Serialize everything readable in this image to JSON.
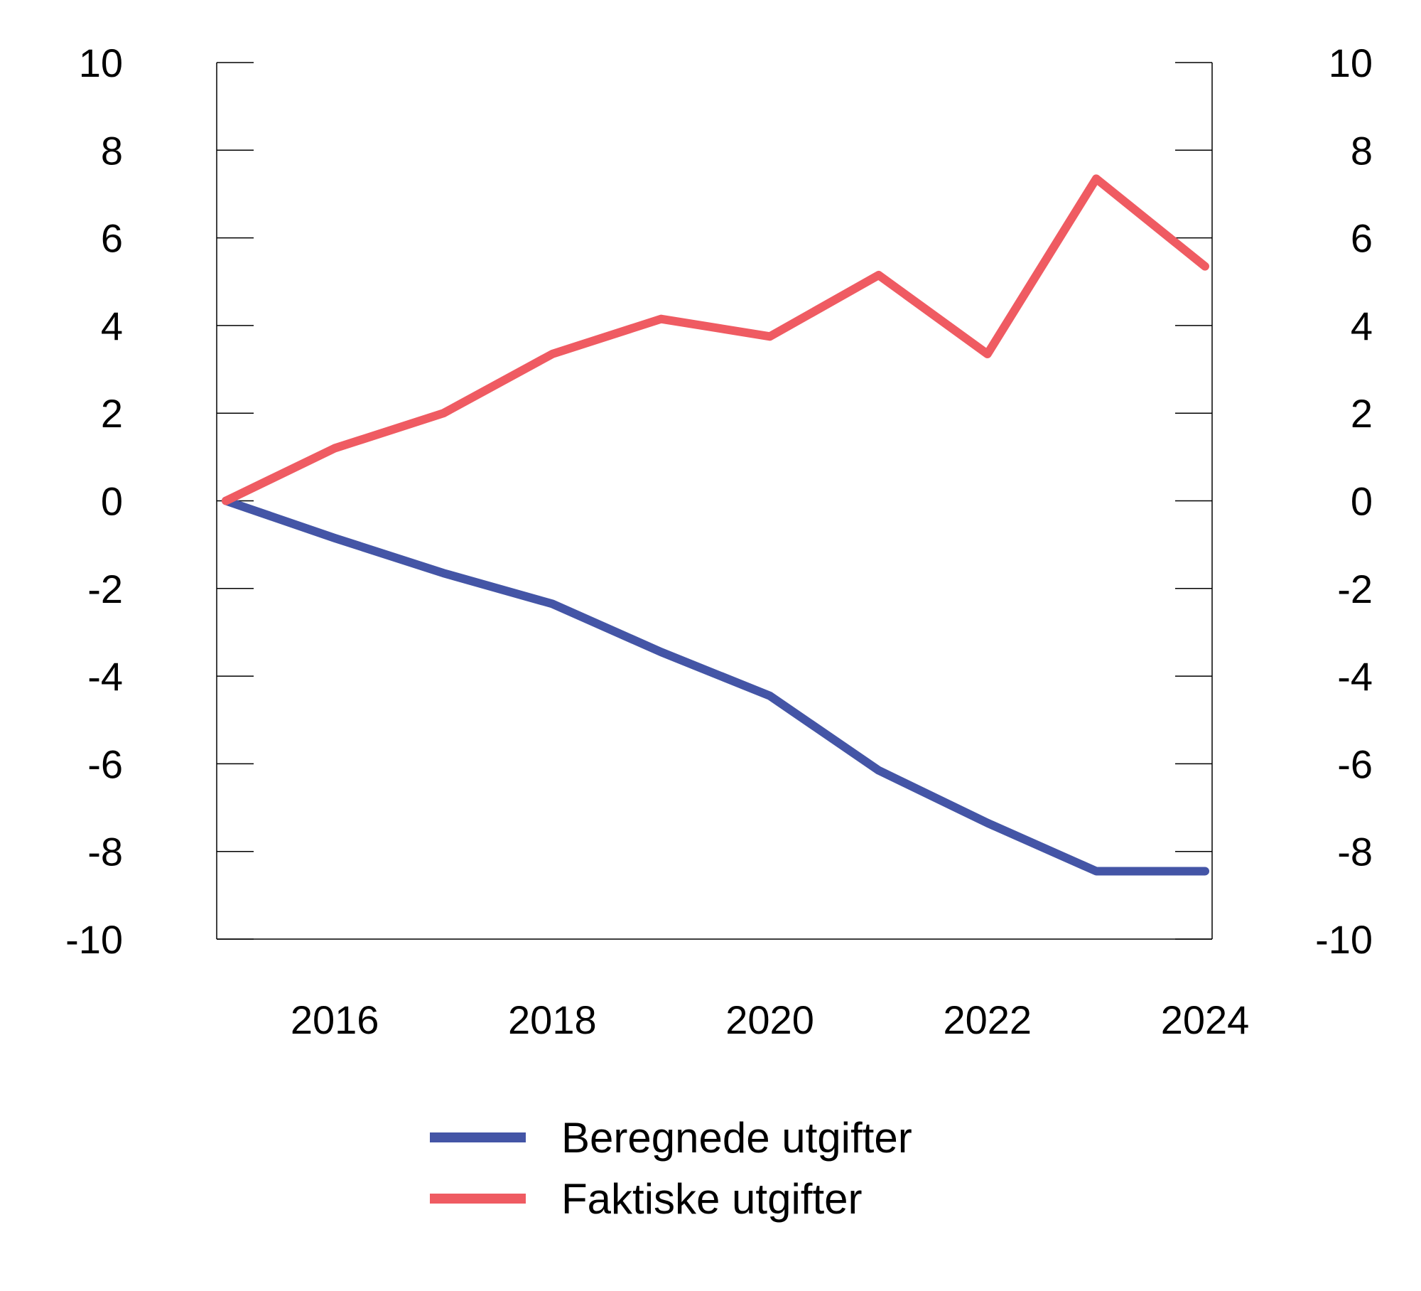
{
  "chart_data": {
    "type": "line",
    "title": "",
    "xlabel": "",
    "ylabel": "",
    "x": [
      2015,
      2016,
      2017,
      2018,
      2019,
      2020,
      2021,
      2022,
      2023,
      2024
    ],
    "xlim": [
      2015,
      2024
    ],
    "x_ticks": [
      "2016",
      "2018",
      "2020",
      "2022",
      "2024"
    ],
    "ylim": [
      -10,
      10
    ],
    "y_ticks_left": [
      "10",
      "8",
      "6",
      "4",
      "2",
      "0",
      "-2",
      "-4",
      "-6",
      "-8",
      "-10"
    ],
    "y_ticks_right": [
      "10",
      "8",
      "6",
      "4",
      "2",
      "0",
      "-2",
      "-4",
      "-6",
      "-8",
      "-10"
    ],
    "grid": false,
    "legend_position": "bottom",
    "series": [
      {
        "name": "Beregnede utgifter",
        "color": "#4455a6",
        "values": [
          0.0,
          -0.85,
          -1.65,
          -2.35,
          -3.45,
          -4.45,
          -6.15,
          -7.35,
          -8.45,
          -8.45
        ]
      },
      {
        "name": "Faktiske utgifter",
        "color": "#ef5b62",
        "values": [
          0.0,
          1.2,
          2.0,
          3.35,
          4.15,
          3.75,
          5.15,
          3.35,
          7.35,
          5.35
        ]
      }
    ]
  }
}
